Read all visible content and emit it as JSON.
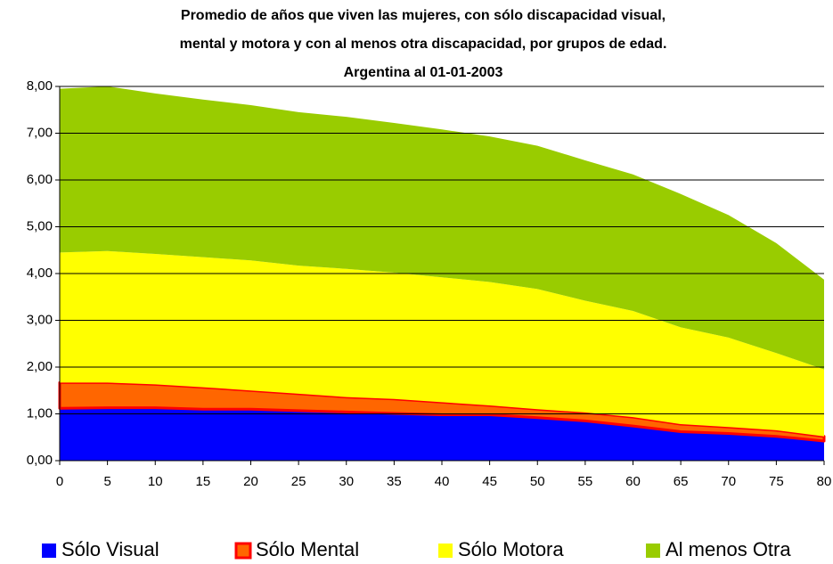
{
  "chart_data": {
    "type": "stacked_area",
    "title": [
      "Promedio de años que viven las mujeres, con sólo discapacidad visual,",
      "mental y motora y con al menos otra discapacidad, por grupos de edad.",
      "Argentina al 01-01-2003"
    ],
    "x": [
      0,
      5,
      10,
      15,
      20,
      25,
      30,
      35,
      40,
      45,
      50,
      55,
      60,
      65,
      70,
      75,
      80
    ],
    "series": [
      {
        "name": "Sólo Visual",
        "color": "#0000ff",
        "values": [
          1.12,
          1.13,
          1.13,
          1.1,
          1.1,
          1.07,
          1.04,
          1.01,
          0.98,
          0.98,
          0.92,
          0.85,
          0.74,
          0.62,
          0.58,
          0.52,
          0.42
        ]
      },
      {
        "name": "Sólo Mental",
        "color": "#ff6600",
        "edge_color": "#ff0000",
        "values": [
          0.55,
          0.54,
          0.5,
          0.47,
          0.4,
          0.36,
          0.32,
          0.31,
          0.27,
          0.2,
          0.18,
          0.18,
          0.19,
          0.16,
          0.14,
          0.13,
          0.1
        ]
      },
      {
        "name": "Sólo Motora",
        "color": "#ffff00",
        "values": [
          2.78,
          2.81,
          2.79,
          2.78,
          2.78,
          2.74,
          2.74,
          2.7,
          2.67,
          2.64,
          2.57,
          2.39,
          2.27,
          2.07,
          1.91,
          1.65,
          1.43
        ]
      },
      {
        "name": "Al menos Otra",
        "color": "#99cc00",
        "values": [
          3.5,
          3.52,
          3.43,
          3.37,
          3.32,
          3.28,
          3.25,
          3.2,
          3.16,
          3.11,
          3.06,
          3.0,
          2.92,
          2.85,
          2.62,
          2.35,
          1.92
        ]
      }
    ],
    "xlim": [
      0,
      80
    ],
    "xticks": [
      0,
      5,
      10,
      15,
      20,
      25,
      30,
      35,
      40,
      45,
      50,
      55,
      60,
      65,
      70,
      75,
      80
    ],
    "ylim": [
      0,
      8
    ],
    "yticks": [
      {
        "value": 0,
        "label": "0,00"
      },
      {
        "value": 1,
        "label": "1,00"
      },
      {
        "value": 2,
        "label": "2,00"
      },
      {
        "value": 3,
        "label": "3,00"
      },
      {
        "value": 4,
        "label": "4,00"
      },
      {
        "value": 5,
        "label": "5,00"
      },
      {
        "value": 6,
        "label": "6,00"
      },
      {
        "value": 7,
        "label": "7,00"
      },
      {
        "value": 8,
        "label": "8,00"
      }
    ],
    "grid": true,
    "legend": "bottom"
  }
}
